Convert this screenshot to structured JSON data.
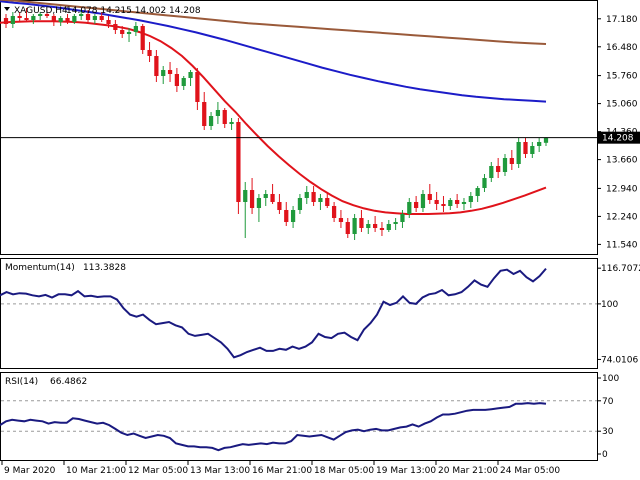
{
  "colors": {
    "bull": "#1f9a3c",
    "bear": "#e0131b",
    "ma_fast": "#e0131b",
    "ma_mid": "#1c1cc8",
    "ma_slow": "#9a5a3a",
    "indicator": "#1a1a80",
    "frame": "#000000",
    "level_line": "#9a9a9a"
  },
  "header": {
    "dropdown_icon": "triangle-down-icon",
    "symbol": "XAGUSD,H4",
    "ohlc": "14.078 14.215 14.002 14.208"
  },
  "chart_data": [
    {
      "type": "candlestick",
      "name": "XAGUSD,H4",
      "ylim": [
        11.3,
        17.6
      ],
      "y_ticks": [
        "17.180",
        "16.480",
        "15.760",
        "15.060",
        "14.360",
        "13.660",
        "12.940",
        "12.240",
        "11.540"
      ],
      "current_price": "14.208",
      "ohlc": [
        [
          17.2,
          17.3,
          16.95,
          17.05
        ],
        [
          17.05,
          17.35,
          16.95,
          17.25
        ],
        [
          17.25,
          17.35,
          17.1,
          17.2
        ],
        [
          17.2,
          17.45,
          17.1,
          17.15
        ],
        [
          17.15,
          17.3,
          17.05,
          17.25
        ],
        [
          17.25,
          17.35,
          17.15,
          17.3
        ],
        [
          17.3,
          17.4,
          17.2,
          17.25
        ],
        [
          17.25,
          17.3,
          17.0,
          17.1
        ],
        [
          17.1,
          17.25,
          17.0,
          17.2
        ],
        [
          17.2,
          17.3,
          17.05,
          17.1
        ],
        [
          17.1,
          17.3,
          17.05,
          17.25
        ],
        [
          17.25,
          17.4,
          17.15,
          17.3
        ],
        [
          17.3,
          17.4,
          17.1,
          17.15
        ],
        [
          17.15,
          17.3,
          17.05,
          17.25
        ],
        [
          17.25,
          17.35,
          17.1,
          17.15
        ],
        [
          17.15,
          17.25,
          16.95,
          17.05
        ],
        [
          17.05,
          17.15,
          16.8,
          16.9
        ],
        [
          16.9,
          17.0,
          16.7,
          16.8
        ],
        [
          16.8,
          16.95,
          16.6,
          16.85
        ],
        [
          16.85,
          17.1,
          16.75,
          17.0
        ],
        [
          17.0,
          17.05,
          16.3,
          16.4
        ],
        [
          16.4,
          16.6,
          16.1,
          16.25
        ],
        [
          16.25,
          16.4,
          15.6,
          15.75
        ],
        [
          15.75,
          16.0,
          15.55,
          15.9
        ],
        [
          15.9,
          16.1,
          15.6,
          15.8
        ],
        [
          15.8,
          15.95,
          15.35,
          15.5
        ],
        [
          15.5,
          15.75,
          15.4,
          15.7
        ],
        [
          15.7,
          15.9,
          15.5,
          15.85
        ],
        [
          15.85,
          15.95,
          14.9,
          15.1
        ],
        [
          15.1,
          15.35,
          14.4,
          14.5
        ],
        [
          14.5,
          14.85,
          14.4,
          14.75
        ],
        [
          14.75,
          15.1,
          14.55,
          14.9
        ],
        [
          14.9,
          14.95,
          14.45,
          14.55
        ],
        [
          14.55,
          14.7,
          14.4,
          14.6
        ],
        [
          14.6,
          14.7,
          12.3,
          12.6
        ],
        [
          12.6,
          13.1,
          11.7,
          12.9
        ],
        [
          12.9,
          13.2,
          12.3,
          12.45
        ],
        [
          12.45,
          12.8,
          12.1,
          12.7
        ],
        [
          12.7,
          12.9,
          12.5,
          12.8
        ],
        [
          12.8,
          13.05,
          12.55,
          12.6
        ],
        [
          12.6,
          12.8,
          12.3,
          12.4
        ],
        [
          12.4,
          12.6,
          12.0,
          12.1
        ],
        [
          12.1,
          12.5,
          11.95,
          12.4
        ],
        [
          12.4,
          12.8,
          12.3,
          12.7
        ],
        [
          12.7,
          13.0,
          12.55,
          12.85
        ],
        [
          12.85,
          13.0,
          12.5,
          12.6
        ],
        [
          12.6,
          12.8,
          12.4,
          12.7
        ],
        [
          12.7,
          12.85,
          12.45,
          12.5
        ],
        [
          12.5,
          12.6,
          12.1,
          12.2
        ],
        [
          12.2,
          12.4,
          11.95,
          12.1
        ],
        [
          12.1,
          12.2,
          11.7,
          11.8
        ],
        [
          11.8,
          12.3,
          11.65,
          12.2
        ],
        [
          12.2,
          12.4,
          11.85,
          11.95
        ],
        [
          11.95,
          12.15,
          11.8,
          12.05
        ],
        [
          12.05,
          12.25,
          11.85,
          11.95
        ],
        [
          11.95,
          12.1,
          11.75,
          11.9
        ],
        [
          11.9,
          12.15,
          11.85,
          12.05
        ],
        [
          12.05,
          12.2,
          11.9,
          12.1
        ],
        [
          12.1,
          12.4,
          11.95,
          12.3
        ],
        [
          12.3,
          12.7,
          12.2,
          12.6
        ],
        [
          12.6,
          12.75,
          12.35,
          12.45
        ],
        [
          12.45,
          12.9,
          12.35,
          12.8
        ],
        [
          12.8,
          13.05,
          12.55,
          12.65
        ],
        [
          12.65,
          12.85,
          12.4,
          12.55
        ],
        [
          12.55,
          12.75,
          12.35,
          12.5
        ],
        [
          12.5,
          12.7,
          12.4,
          12.65
        ],
        [
          12.65,
          12.8,
          12.45,
          12.55
        ],
        [
          12.55,
          12.7,
          12.4,
          12.6
        ],
        [
          12.6,
          12.85,
          12.45,
          12.75
        ],
        [
          12.75,
          13.0,
          12.6,
          12.95
        ],
        [
          12.95,
          13.3,
          12.85,
          13.2
        ],
        [
          13.2,
          13.6,
          13.1,
          13.5
        ],
        [
          13.5,
          13.7,
          13.2,
          13.35
        ],
        [
          13.35,
          13.8,
          13.25,
          13.7
        ],
        [
          13.7,
          13.9,
          13.4,
          13.55
        ],
        [
          13.55,
          14.2,
          13.45,
          14.1
        ],
        [
          14.1,
          14.2,
          13.7,
          13.8
        ],
        [
          13.8,
          14.1,
          13.7,
          14.0
        ],
        [
          14.0,
          14.2,
          13.85,
          14.1
        ],
        [
          14.08,
          14.22,
          14.0,
          14.21
        ]
      ],
      "moving_averages": [
        {
          "values": [
            17.08,
            17.1,
            17.11,
            17.12,
            17.12,
            17.12,
            17.11,
            17.1,
            17.08,
            17.05,
            17.02,
            16.98,
            16.93,
            16.85,
            16.75,
            16.62,
            16.45,
            16.25,
            16.0,
            15.72,
            15.42,
            15.12,
            14.85,
            14.55,
            14.27,
            14.0,
            13.75,
            13.52,
            13.3,
            13.1,
            12.92,
            12.76,
            12.62,
            12.52,
            12.44,
            12.38,
            12.34,
            12.32,
            12.3,
            12.3,
            12.3,
            12.31,
            12.32,
            12.34,
            12.38,
            12.43,
            12.5,
            12.58,
            12.67,
            12.76,
            12.86,
            12.96
          ]
        },
        {
          "values": [
            17.62,
            17.58,
            17.55,
            17.51,
            17.47,
            17.42,
            17.37,
            17.32,
            17.26,
            17.2,
            17.14,
            17.07,
            17.0,
            16.92,
            16.84,
            16.75,
            16.66,
            16.56,
            16.46,
            16.36,
            16.26,
            16.16,
            16.06,
            15.96,
            15.87,
            15.78,
            15.7,
            15.62,
            15.55,
            15.48,
            15.42,
            15.37,
            15.32,
            15.27,
            15.23,
            15.2,
            15.17,
            15.15,
            15.13,
            15.11
          ]
        },
        {
          "values": [
            17.66,
            17.63,
            17.59,
            17.55,
            17.51,
            17.47,
            17.43,
            17.39,
            17.35,
            17.31,
            17.27,
            17.23,
            17.19,
            17.15,
            17.11,
            17.07,
            17.04,
            17.01,
            16.98,
            16.95,
            16.92,
            16.89,
            16.86,
            16.83,
            16.8,
            16.77,
            16.74,
            16.71,
            16.68,
            16.65,
            16.62,
            16.59,
            16.57,
            16.55
          ]
        }
      ]
    },
    {
      "type": "line",
      "name": "Momentum(14)",
      "value_label": "113.3828",
      "ylim": [
        70.0,
        121.0
      ],
      "y_ticks": [
        "116.7072",
        "100",
        "74.0106"
      ],
      "level": 100,
      "values": [
        104.0,
        105.5,
        104.5,
        105.0,
        104.8,
        104.0,
        103.5,
        104.2,
        103.0,
        104.5,
        104.5,
        104.0,
        106.0,
        103.5,
        103.8,
        103.2,
        103.5,
        103.5,
        102.0,
        98.0,
        95.0,
        94.0,
        95.0,
        92.5,
        90.5,
        91.0,
        91.5,
        90.0,
        89.0,
        86.0,
        85.0,
        85.5,
        86.0,
        84.0,
        82.0,
        79.0,
        75.0,
        76.0,
        77.5,
        78.5,
        79.5,
        78.0,
        78.0,
        79.0,
        78.5,
        80.0,
        79.0,
        80.0,
        82.0,
        86.0,
        84.5,
        84.0,
        86.0,
        86.5,
        84.5,
        83.0,
        88.0,
        91.0,
        95.0,
        101.0,
        99.5,
        100.5,
        103.5,
        100.5,
        100.0,
        103.0,
        104.5,
        105.0,
        106.5,
        104.0,
        104.5,
        105.5,
        108.0,
        111.0,
        109.0,
        108.0,
        112.0,
        115.5,
        116.0,
        114.0,
        115.5,
        112.5,
        110.5,
        113.0,
        116.5
      ]
    },
    {
      "type": "line",
      "name": "RSI(14)",
      "value_label": "66.4862",
      "ylim": [
        0,
        100
      ],
      "y_ticks": [
        "100",
        "70",
        "30",
        "0"
      ],
      "levels": [
        70,
        30
      ],
      "values": [
        38,
        43,
        45,
        44,
        43,
        45,
        44,
        43,
        40,
        42,
        41,
        41,
        47,
        46,
        44,
        42,
        40,
        41,
        38,
        33,
        28,
        25,
        27,
        24,
        21,
        23,
        25,
        24,
        21,
        14,
        12,
        10,
        10,
        9,
        9,
        8,
        5,
        8,
        9,
        11,
        13,
        12,
        13,
        14,
        13,
        15,
        14,
        14,
        17,
        25,
        24,
        23,
        24,
        25,
        22,
        19,
        24,
        29,
        31,
        32,
        30,
        32,
        33,
        31,
        31,
        33,
        35,
        36,
        39,
        36,
        40,
        43,
        48,
        52,
        52,
        53,
        55,
        57,
        58,
        58,
        58,
        59,
        60,
        61,
        62,
        66,
        66,
        67,
        66,
        67,
        66
      ]
    }
  ],
  "x_axis": {
    "labels": [
      "9 Mar 2020",
      "10 Mar 21:00",
      "12 Mar 05:00",
      "13 Mar 13:00",
      "16 Mar 21:00",
      "18 Mar 05:00",
      "19 Mar 13:00",
      "20 Mar 21:00",
      "24 Mar 05:00"
    ]
  }
}
